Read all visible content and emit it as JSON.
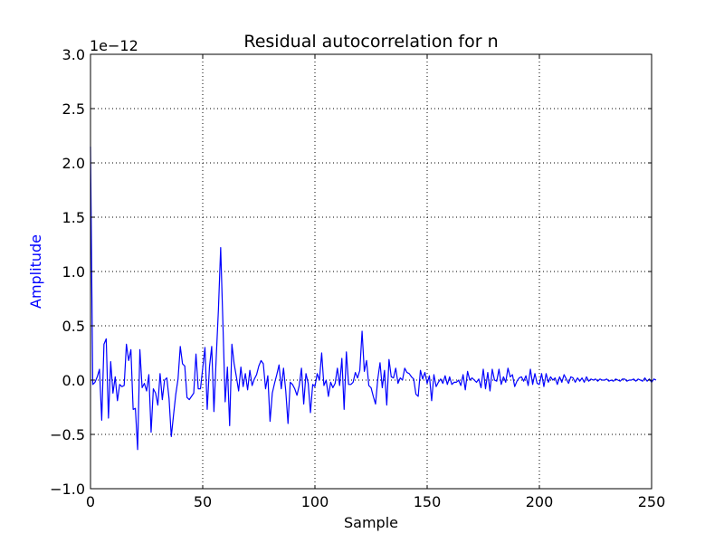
{
  "chart_data": {
    "type": "line",
    "title": "Residual autocorrelation for n",
    "xlabel": "Sample",
    "ylabel": "Amplitude",
    "y_offset_label": "1e−12",
    "y_scale": 1e-12,
    "xlim": [
      0,
      250
    ],
    "ylim": [
      -1.0,
      3.0
    ],
    "grid": true,
    "x_ticks": [
      {
        "value": 0,
        "label": "0"
      },
      {
        "value": 50,
        "label": "50"
      },
      {
        "value": 100,
        "label": "100"
      },
      {
        "value": 150,
        "label": "150"
      },
      {
        "value": 200,
        "label": "200"
      },
      {
        "value": 250,
        "label": "250"
      }
    ],
    "y_ticks": [
      {
        "value": -1.0,
        "label": "−1.0"
      },
      {
        "value": -0.5,
        "label": "−0.5"
      },
      {
        "value": 0.0,
        "label": "0.0"
      },
      {
        "value": 0.5,
        "label": "0.5"
      },
      {
        "value": 1.0,
        "label": "1.0"
      },
      {
        "value": 1.5,
        "label": "1.5"
      },
      {
        "value": 2.0,
        "label": "2.0"
      },
      {
        "value": 2.5,
        "label": "2.5"
      },
      {
        "value": 3.0,
        "label": "3.0"
      }
    ],
    "colors": {
      "line": "#0000ff",
      "ylabel": "#0000ff",
      "grid": "#000000",
      "axes": "#000000"
    },
    "series": [
      {
        "values": [
          2.15,
          -0.04,
          -0.02,
          0.03,
          0.1,
          -0.37,
          0.33,
          0.38,
          -0.35,
          0.17,
          -0.12,
          0.03,
          -0.19,
          -0.04,
          -0.06,
          -0.05,
          0.33,
          0.18,
          0.28,
          -0.27,
          -0.26,
          -0.64,
          0.28,
          -0.07,
          -0.03,
          -0.1,
          0.05,
          -0.48,
          -0.08,
          -0.12,
          -0.23,
          0.06,
          -0.18,
          0.0,
          0.02,
          -0.17,
          -0.52,
          -0.32,
          -0.13,
          0.01,
          0.31,
          0.15,
          0.13,
          -0.16,
          -0.18,
          -0.15,
          -0.12,
          0.24,
          -0.08,
          -0.08,
          0.11,
          0.3,
          -0.27,
          0.12,
          0.31,
          -0.29,
          0.2,
          0.65,
          1.22,
          0.52,
          -0.2,
          0.12,
          -0.42,
          0.33,
          0.15,
          0.03,
          -0.1,
          0.12,
          -0.06,
          0.06,
          -0.09,
          0.09,
          -0.05,
          0.01,
          0.05,
          0.13,
          0.18,
          0.15,
          -0.08,
          0.04,
          -0.38,
          -0.12,
          -0.03,
          0.05,
          0.14,
          -0.08,
          0.11,
          -0.1,
          -0.4,
          -0.02,
          -0.04,
          -0.08,
          -0.14,
          -0.05,
          0.11,
          -0.22,
          0.06,
          -0.03,
          -0.3,
          -0.04,
          -0.06,
          0.06,
          0.0,
          0.25,
          -0.05,
          0.0,
          -0.15,
          -0.02,
          -0.07,
          -0.03,
          0.11,
          -0.05,
          0.2,
          -0.27,
          0.26,
          -0.04,
          -0.04,
          -0.02,
          0.07,
          0.02,
          0.09,
          0.45,
          0.08,
          0.18,
          -0.05,
          -0.07,
          -0.15,
          -0.22,
          0.01,
          0.16,
          -0.07,
          0.09,
          -0.23,
          0.19,
          0.03,
          0.02,
          0.11,
          -0.03,
          0.02,
          0.0,
          0.11,
          0.07,
          0.06,
          0.03,
          0.01,
          -0.13,
          -0.15,
          0.09,
          0.01,
          0.07,
          -0.03,
          0.04,
          -0.19,
          0.05,
          -0.06,
          -0.02,
          0.01,
          -0.03,
          0.04,
          -0.04,
          0.03,
          -0.04,
          -0.02,
          -0.02,
          0.0,
          -0.05,
          0.05,
          -0.09,
          0.08,
          0.0,
          0.02,
          0.0,
          -0.02,
          0.01,
          -0.07,
          0.1,
          -0.08,
          0.07,
          -0.1,
          0.1,
          0.0,
          -0.01,
          0.1,
          -0.04,
          0.03,
          -0.02,
          0.11,
          0.03,
          0.05,
          -0.06,
          -0.01,
          0.02,
          0.03,
          -0.01,
          0.04,
          -0.05,
          0.1,
          -0.04,
          0.06,
          -0.03,
          -0.04,
          0.06,
          -0.06,
          0.06,
          -0.02,
          0.03,
          0.0,
          0.02,
          -0.04,
          0.03,
          -0.02,
          0.05,
          0.01,
          -0.03,
          0.03,
          0.02,
          -0.02,
          0.02,
          -0.01,
          0.02,
          -0.02,
          0.03,
          -0.01,
          0.01,
          0.0,
          0.01,
          -0.01,
          0.01,
          0.0,
          0.0,
          0.01,
          -0.01,
          0.0,
          -0.01,
          0.01,
          0.0,
          -0.01,
          0.01,
          0.01,
          -0.01,
          0.0,
          0.0,
          0.01,
          -0.01,
          0.01,
          0.0,
          -0.01,
          0.02,
          -0.01,
          0.01,
          -0.02,
          0.01,
          0.0
        ]
      }
    ]
  }
}
